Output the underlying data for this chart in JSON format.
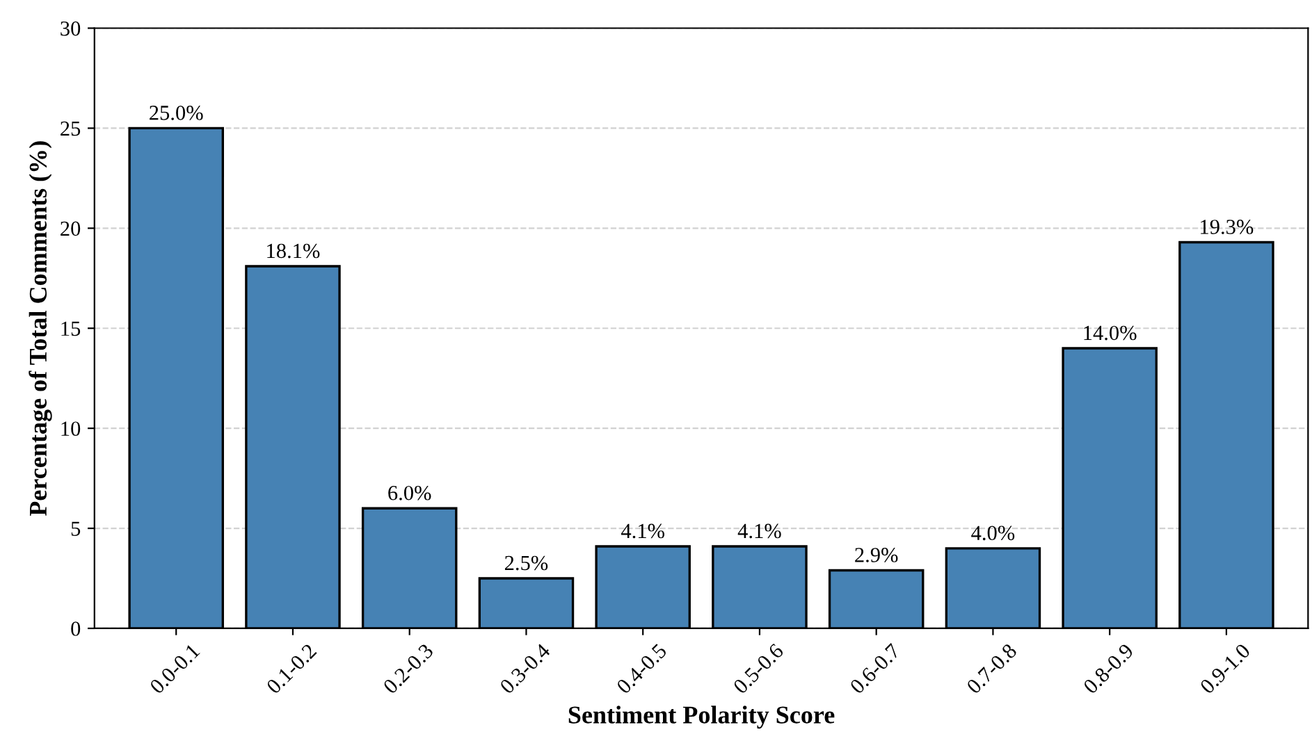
{
  "chart_data": {
    "type": "bar",
    "xlabel": "Sentiment Polarity Score",
    "ylabel": "Percentage of Total Comments (%)",
    "categories": [
      "0.0-0.1",
      "0.1-0.2",
      "0.2-0.3",
      "0.3-0.4",
      "0.4-0.5",
      "0.5-0.6",
      "0.6-0.7",
      "0.7-0.8",
      "0.8-0.9",
      "0.9-1.0"
    ],
    "values": [
      25.0,
      18.1,
      6.0,
      2.5,
      4.1,
      4.1,
      2.9,
      4.0,
      14.0,
      19.3
    ],
    "value_labels": [
      "25.0%",
      "18.1%",
      "6.0%",
      "2.5%",
      "4.1%",
      "4.1%",
      "2.9%",
      "4.0%",
      "14.0%",
      "19.3%"
    ],
    "color": "#4682b4",
    "ylim": [
      0,
      30
    ],
    "yticks": [
      0,
      5,
      10,
      15,
      20,
      25,
      30
    ],
    "grid": "y"
  }
}
